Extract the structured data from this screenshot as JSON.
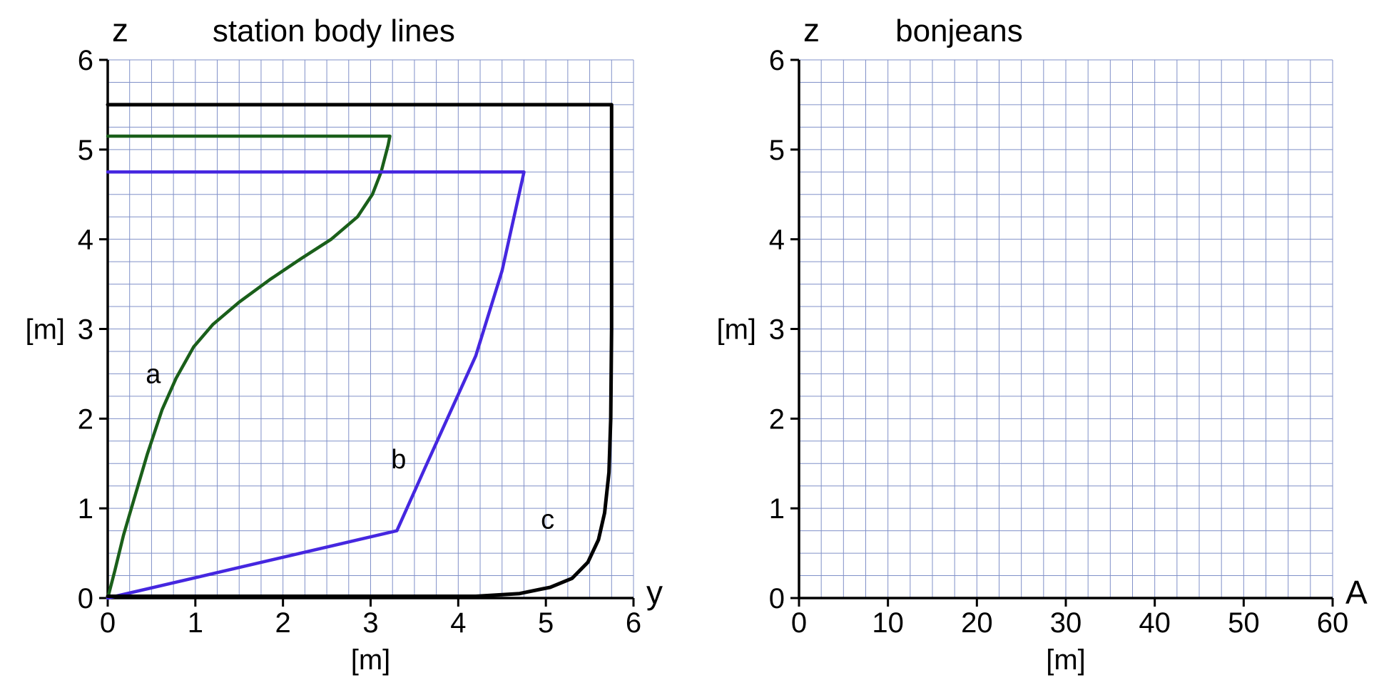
{
  "figure": {
    "background": "#ffffff",
    "grid_color": "#8090c8",
    "axis_color": "#000000"
  },
  "chart_data": [
    {
      "id": "station-body-lines",
      "type": "line",
      "title": "station body lines",
      "x_axis_letter": "y",
      "y_axis_letter": "z",
      "x_unit_label": "[m]",
      "y_unit_label": "[m]",
      "xlim": [
        0,
        6
      ],
      "ylim": [
        0,
        6
      ],
      "x_ticks": [
        0,
        1,
        2,
        3,
        4,
        5,
        6
      ],
      "y_ticks": [
        0,
        1,
        2,
        3,
        4,
        5,
        6
      ],
      "minor_step_x": 0.25,
      "minor_step_y": 0.25,
      "grid": true,
      "series": [
        {
          "name": "a",
          "color": "#1a5f1a",
          "width": 4.5,
          "points": [
            [
              0,
              0
            ],
            [
              0.08,
              0.3
            ],
            [
              0.18,
              0.7
            ],
            [
              0.3,
              1.1
            ],
            [
              0.45,
              1.6
            ],
            [
              0.62,
              2.1
            ],
            [
              0.78,
              2.45
            ],
            [
              0.98,
              2.8
            ],
            [
              1.2,
              3.05
            ],
            [
              1.5,
              3.3
            ],
            [
              1.85,
              3.55
            ],
            [
              2.2,
              3.78
            ],
            [
              2.55,
              4.0
            ],
            [
              2.85,
              4.25
            ],
            [
              3.02,
              4.5
            ],
            [
              3.12,
              4.75
            ],
            [
              3.2,
              5.05
            ],
            [
              3.22,
              5.15
            ],
            [
              0,
              5.15
            ]
          ],
          "label": {
            "text": "a",
            "x": 0.52,
            "y": 2.5
          }
        },
        {
          "name": "b",
          "color": "#4527e0",
          "width": 4.5,
          "points": [
            [
              0,
              0
            ],
            [
              3.3,
              0.75
            ],
            [
              3.62,
              1.45
            ],
            [
              4.2,
              2.7
            ],
            [
              4.5,
              3.65
            ],
            [
              4.75,
              4.75
            ],
            [
              0,
              4.75
            ]
          ],
          "label": {
            "text": "b",
            "x": 3.32,
            "y": 1.55
          }
        },
        {
          "name": "c",
          "color": "#000000",
          "width": 5,
          "points": [
            [
              0,
              0.02
            ],
            [
              4.2,
              0.02
            ],
            [
              4.7,
              0.05
            ],
            [
              5.05,
              0.12
            ],
            [
              5.3,
              0.22
            ],
            [
              5.48,
              0.4
            ],
            [
              5.6,
              0.65
            ],
            [
              5.67,
              0.95
            ],
            [
              5.72,
              1.4
            ],
            [
              5.74,
              2.0
            ],
            [
              5.75,
              3.0
            ],
            [
              5.75,
              5.5
            ],
            [
              0,
              5.5
            ]
          ],
          "label": {
            "text": "c",
            "x": 5.02,
            "y": 0.88
          }
        }
      ]
    },
    {
      "id": "bonjeans",
      "type": "line",
      "title": "bonjeans",
      "x_axis_letter": "A",
      "y_axis_letter": "z",
      "x_unit_label": "[m]",
      "y_unit_label": "[m]",
      "xlim": [
        0,
        60
      ],
      "ylim": [
        0,
        6
      ],
      "x_ticks": [
        0,
        10,
        20,
        30,
        40,
        50,
        60
      ],
      "y_ticks": [
        0,
        1,
        2,
        3,
        4,
        5,
        6
      ],
      "minor_step_x": 2.5,
      "minor_step_y": 0.25,
      "grid": true,
      "series": []
    }
  ]
}
